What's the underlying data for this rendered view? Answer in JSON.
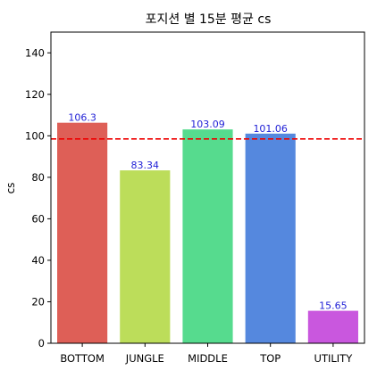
{
  "chart_data": {
    "type": "bar",
    "title": "포지션 별 15분 평균 cs",
    "xlabel": "",
    "ylabel": "cs",
    "categories": [
      "BOTTOM",
      "JUNGLE",
      "MIDDLE",
      "TOP",
      "UTILITY"
    ],
    "values": [
      106.3,
      83.34,
      103.09,
      101.06,
      15.65
    ],
    "value_labels": [
      "106.3",
      "83.34",
      "103.09",
      "101.06",
      "15.65"
    ],
    "bar_colors": [
      "#de5f57",
      "#bcdd5a",
      "#56db8e",
      "#5588de",
      "#c957de"
    ],
    "ylim": [
      0,
      150
    ],
    "yticks": [
      0,
      20,
      40,
      60,
      80,
      100,
      120,
      140
    ],
    "reference_line": {
      "value": 98.5,
      "color": "#ee0000",
      "style": "dashed"
    },
    "grid": false,
    "legend": "none"
  }
}
